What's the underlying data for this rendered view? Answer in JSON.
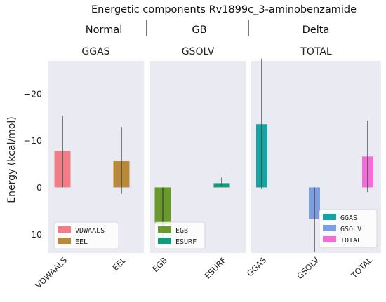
{
  "title": "Energetic components Rv1899c_3-aminobenzamide",
  "groups": [
    "Normal",
    "GB",
    "Delta"
  ],
  "chart_data": {
    "type": "bar",
    "ylabel": "Energy (kcal/mol)",
    "ylim": [
      14,
      -27
    ],
    "y_inverted": true,
    "yticks": [
      10,
      0,
      -10,
      -20
    ],
    "ytick_labels": [
      "10",
      "0",
      "−10",
      "−20"
    ],
    "grid": false,
    "panels": [
      {
        "title": "GGAS",
        "group": "Normal",
        "categories": [
          "VDWAALS",
          "EEL"
        ],
        "values": [
          -7.8,
          -5.6
        ],
        "err_low": [
          0.0,
          1.4
        ],
        "err_high": [
          -15.3,
          -12.9
        ],
        "colors": [
          "#f47c87",
          "#b9893a"
        ],
        "legend": [
          "VDWAALS",
          "EEL"
        ],
        "legend_position": "bottom-left"
      },
      {
        "title": "GSOLV",
        "group": "GB",
        "categories": [
          "EGB",
          "ESURF"
        ],
        "values": [
          7.9,
          -0.9
        ],
        "err_low": [
          10.5,
          -0.3
        ],
        "err_high": [
          0.0,
          -2.1
        ],
        "colors": [
          "#6a9a2e",
          "#139b7d"
        ],
        "legend": [
          "EGB",
          "ESURF"
        ],
        "legend_position": "bottom-left"
      },
      {
        "title": "TOTAL",
        "group": "Delta",
        "categories": [
          "GGAS",
          "GSOLV",
          "TOTAL"
        ],
        "values": [
          -13.5,
          6.7,
          -6.6
        ],
        "err_low": [
          0.4,
          13.8,
          1.0
        ],
        "err_high": [
          -27.5,
          0.0,
          -14.3
        ],
        "colors": [
          "#15a3a3",
          "#7c9de0",
          "#f46bd9"
        ],
        "legend": [
          "GGAS",
          "GSOLV",
          "TOTAL"
        ],
        "legend_position": "bottom-right"
      }
    ]
  }
}
